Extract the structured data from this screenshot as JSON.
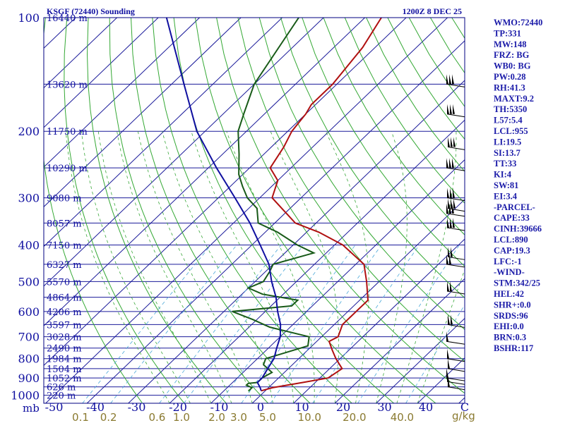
{
  "chart_data": {
    "type": "line",
    "title": "KSGF (72440) Sounding",
    "valid_time": "1200Z  8 DEC 25",
    "p_axis_unit": "mb",
    "p_ticks": [
      "100",
      "200",
      "300",
      "400",
      "500",
      "600",
      "700",
      "800",
      "900",
      "1000"
    ],
    "t_axis_ticks": [
      "-50",
      "-40",
      "-30",
      "-20",
      "-10",
      "0",
      "10",
      "20",
      "30",
      "40"
    ],
    "mr_unit": "g/kg",
    "mr_ticks": [
      "0.1",
      "0.2",
      "0.6",
      "1.0",
      "2.0",
      "3.0",
      "5.0",
      "10.0",
      "20.0",
      "40.0"
    ],
    "height_levels": [
      {
        "p": 100,
        "label": "16440 m"
      },
      {
        "p": 150,
        "label": "13620 m"
      },
      {
        "p": 200,
        "label": "11750 m"
      },
      {
        "p": 250,
        "label": "10290 m"
      },
      {
        "p": 300,
        "label": "9080 m"
      },
      {
        "p": 350,
        "label": "8057 m"
      },
      {
        "p": 400,
        "label": "7150 m"
      },
      {
        "p": 450,
        "label": "6327 m"
      },
      {
        "p": 500,
        "label": "5570 m"
      },
      {
        "p": 550,
        "label": "4864 m"
      },
      {
        "p": 600,
        "label": "4206 m"
      },
      {
        "p": 650,
        "label": "3597 m"
      },
      {
        "p": 700,
        "label": "3028 m"
      },
      {
        "p": 750,
        "label": "2490 m"
      },
      {
        "p": 800,
        "label": "1984 m"
      },
      {
        "p": 850,
        "label": "1504 m"
      },
      {
        "p": 900,
        "label": "1052 m"
      },
      {
        "p": 950,
        "label": "626 m"
      },
      {
        "p": 1000,
        "label": "220 m"
      }
    ],
    "series": [
      {
        "color": "#b01010",
        "values": [
          [
            973,
            -1
          ],
          [
            955,
            1
          ],
          [
            925,
            7
          ],
          [
            900,
            12
          ],
          [
            850,
            13
          ],
          [
            800,
            9
          ],
          [
            760,
            6
          ],
          [
            720,
            3
          ],
          [
            700,
            4
          ],
          [
            650,
            2
          ],
          [
            620,
            2
          ],
          [
            600,
            2
          ],
          [
            560,
            2
          ],
          [
            500,
            -3
          ],
          [
            450,
            -8
          ],
          [
            400,
            -18
          ],
          [
            370,
            -27
          ],
          [
            350,
            -35
          ],
          [
            320,
            -42
          ],
          [
            300,
            -47
          ],
          [
            270,
            -50
          ],
          [
            250,
            -55
          ],
          [
            220,
            -57
          ],
          [
            200,
            -59
          ],
          [
            180,
            -60
          ],
          [
            170,
            -61
          ],
          [
            150,
            -61
          ],
          [
            120,
            -63
          ],
          [
            100,
            -66
          ]
        ]
      },
      {
        "color": "#185a18",
        "values": [
          [
            973,
            -4
          ],
          [
            955,
            -4
          ],
          [
            940,
            -6
          ],
          [
            930,
            -6
          ],
          [
            925,
            -4
          ],
          [
            900,
            -4
          ],
          [
            870,
            -3
          ],
          [
            850,
            -5
          ],
          [
            830,
            -7
          ],
          [
            800,
            -8
          ],
          [
            740,
            -1
          ],
          [
            700,
            -3
          ],
          [
            660,
            -15
          ],
          [
            630,
            -21
          ],
          [
            600,
            -28
          ],
          [
            580,
            -15
          ],
          [
            560,
            -15
          ],
          [
            540,
            -25
          ],
          [
            520,
            -30
          ],
          [
            500,
            -28
          ],
          [
            470,
            -29
          ],
          [
            450,
            -30
          ],
          [
            420,
            -23
          ],
          [
            400,
            -29
          ],
          [
            370,
            -37
          ],
          [
            350,
            -44
          ],
          [
            320,
            -48
          ],
          [
            300,
            -53
          ],
          [
            280,
            -57
          ],
          [
            260,
            -61
          ],
          [
            230,
            -66
          ],
          [
            200,
            -72
          ],
          [
            180,
            -75
          ],
          [
            150,
            -80
          ],
          [
            100,
            -86
          ]
        ]
      },
      {
        "color": "#1010a0",
        "values": [
          [
            973,
            -1
          ],
          [
            955,
            -2
          ],
          [
            925,
            -4
          ],
          [
            900,
            -4
          ],
          [
            850,
            -5
          ],
          [
            800,
            -6
          ],
          [
            750,
            -8
          ],
          [
            700,
            -10
          ],
          [
            650,
            -13
          ],
          [
            600,
            -17
          ],
          [
            550,
            -21
          ],
          [
            500,
            -26
          ],
          [
            450,
            -31
          ],
          [
            400,
            -38
          ],
          [
            350,
            -46
          ],
          [
            300,
            -56
          ],
          [
            250,
            -68
          ],
          [
            200,
            -82
          ],
          [
            150,
            -97
          ],
          [
            100,
            -118
          ]
        ]
      }
    ],
    "winds": [
      {
        "p": 150
      },
      {
        "p": 180
      },
      {
        "p": 220
      },
      {
        "p": 250
      },
      {
        "p": 300
      },
      {
        "p": 320
      },
      {
        "p": 330
      },
      {
        "p": 360
      },
      {
        "p": 430
      },
      {
        "p": 450
      },
      {
        "p": 530
      },
      {
        "p": 650
      },
      {
        "p": 720
      },
      {
        "p": 800
      },
      {
        "p": 850
      },
      {
        "p": 900
      },
      {
        "p": 920
      },
      {
        "p": 950
      }
    ],
    "indices": [
      "WMO:72440",
      "TP:331",
      "MW:148",
      "FRZ: BG",
      "WB0: BG",
      "PW:0.28",
      "RH:41.3",
      "MAXT:9.2",
      "TH:5350",
      "L57:5.4",
      "LCL:955",
      "LI:19.5",
      "SI:13.7",
      "TT:33",
      "KI:4",
      "SW:81",
      "EI:3.4",
      "-PARCEL-",
      "CAPE:33",
      "CINH:39666",
      "LCL:890",
      "CAP:19.3",
      "LFC:-1",
      "-WIND-",
      "STM:342/25",
      "HEL:42",
      "SHR+:0.0",
      "SRDS:96",
      "EHI:0.0",
      "BRN:0.3",
      "BSHR:117"
    ]
  }
}
